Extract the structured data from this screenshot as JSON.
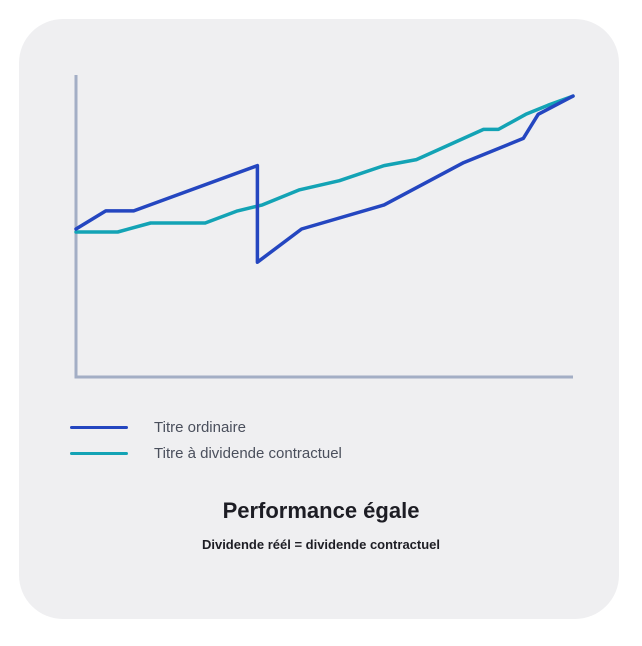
{
  "chart_data": {
    "type": "line",
    "title": "Performance égale",
    "subtitle": "Dividende réél = dividende contractuel",
    "xlabel": "",
    "ylabel": "",
    "grid": false,
    "legend_placement": "bottom-left",
    "xlim": [
      0,
      100
    ],
    "ylim": [
      0,
      100
    ],
    "series": [
      {
        "name": "Titre ordinaire",
        "color": "#2446c0",
        "points": [
          [
            0,
            49
          ],
          [
            6,
            55
          ],
          [
            11.6,
            55
          ],
          [
            36.5,
            70
          ],
          [
            36.5,
            38
          ],
          [
            45.4,
            49
          ],
          [
            62,
            57
          ],
          [
            78,
            71
          ],
          [
            90,
            79
          ],
          [
            93,
            87
          ],
          [
            100,
            93
          ]
        ]
      },
      {
        "name": "Titre à dividende contractuel",
        "color": "#13a3b5",
        "points": [
          [
            0,
            48
          ],
          [
            8.4,
            48
          ],
          [
            15,
            51
          ],
          [
            26,
            51
          ],
          [
            32.5,
            55
          ],
          [
            37.5,
            57
          ],
          [
            45,
            62
          ],
          [
            53,
            65
          ],
          [
            62,
            70
          ],
          [
            68.5,
            72
          ],
          [
            82,
            82
          ],
          [
            85,
            82
          ],
          [
            90.5,
            87
          ],
          [
            95,
            90
          ],
          [
            100,
            93
          ]
        ]
      }
    ]
  },
  "colors": {
    "axis": "#a3aec5",
    "card_background": "#efeff1"
  }
}
